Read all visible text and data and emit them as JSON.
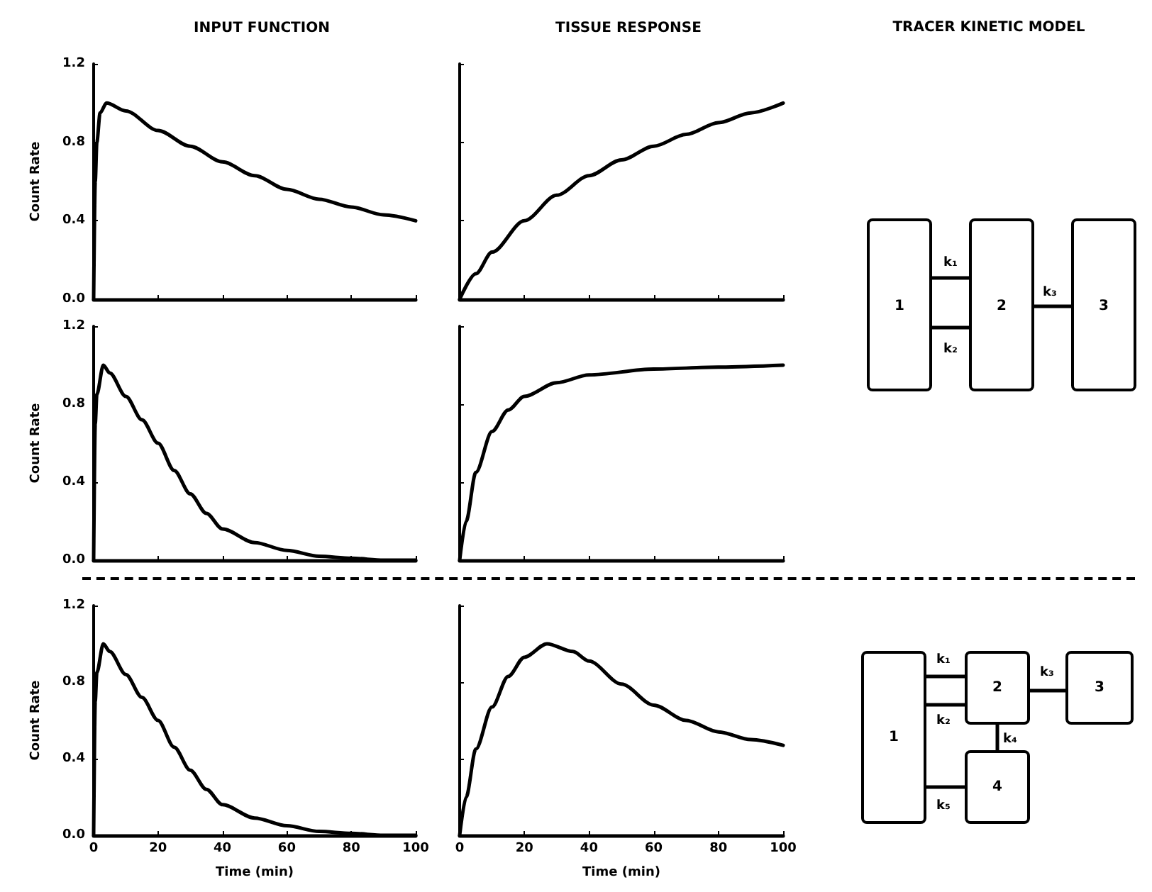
{
  "chart_data": [
    {
      "type": "line",
      "title": "INPUT FUNCTION",
      "ylabel": "Count Rate",
      "xlim": [
        0,
        100
      ],
      "xticks": [
        0,
        20,
        40,
        60,
        80,
        100
      ],
      "ylim": [
        0,
        1.2
      ],
      "yticks": [
        {
          "value": 0,
          "label": "0.0"
        },
        {
          "value": 0.4,
          "label": "0.4"
        },
        {
          "value": 0.8,
          "label": "0.8"
        },
        {
          "value": 1.2,
          "label": "1.2"
        }
      ],
      "tick_labels": "y",
      "series": [
        {
          "color": "#000000",
          "x": [
            0,
            0.5,
            1,
            2,
            4,
            10,
            20,
            30,
            40,
            50,
            60,
            70,
            80,
            90,
            100
          ],
          "values": [
            0,
            0.6,
            0.8,
            0.95,
            1.0,
            0.96,
            0.86,
            0.78,
            0.7,
            0.63,
            0.56,
            0.51,
            0.47,
            0.43,
            0.4
          ]
        }
      ]
    },
    {
      "type": "line",
      "title": "TISSUE RESPONSE",
      "xlim": [
        0,
        100
      ],
      "xticks": [
        0,
        20,
        40,
        60,
        80,
        100
      ],
      "ylim": [
        0,
        1.2
      ],
      "yticks": [
        0,
        0.4,
        0.8,
        1.2
      ],
      "tick_labels": false,
      "series": [
        {
          "color": "#000000",
          "x": [
            0,
            5,
            10,
            20,
            30,
            40,
            50,
            60,
            70,
            80,
            90,
            100
          ],
          "values": [
            0,
            0.13,
            0.24,
            0.4,
            0.53,
            0.63,
            0.71,
            0.78,
            0.84,
            0.9,
            0.95,
            1.0
          ]
        }
      ]
    },
    {
      "type": "other",
      "title": "TRACER KINETIC MODEL",
      "annotations": [
        "1",
        "2",
        "3",
        "k₁",
        "k₂",
        "k₃"
      ]
    },
    {
      "type": "line",
      "ylabel": "Count Rate",
      "xlim": [
        0,
        100
      ],
      "xticks": [
        0,
        20,
        40,
        60,
        80,
        100
      ],
      "ylim": [
        0,
        1.2
      ],
      "yticks": [
        {
          "value": 0,
          "label": "0.0"
        },
        {
          "value": 0.4,
          "label": "0.4"
        },
        {
          "value": 0.8,
          "label": "0.8"
        },
        {
          "value": 1.2,
          "label": "1.2"
        }
      ],
      "tick_labels": "y",
      "series": [
        {
          "color": "#000000",
          "x": [
            0,
            0.5,
            1,
            3,
            5,
            10,
            15,
            20,
            25,
            30,
            35,
            40,
            50,
            60,
            70,
            80,
            90,
            100
          ],
          "values": [
            0,
            0.7,
            0.85,
            1.0,
            0.96,
            0.84,
            0.72,
            0.6,
            0.46,
            0.34,
            0.24,
            0.16,
            0.09,
            0.05,
            0.02,
            0.01,
            0,
            0
          ]
        }
      ]
    },
    {
      "type": "line",
      "xlim": [
        0,
        100
      ],
      "xticks": [
        0,
        20,
        40,
        60,
        80,
        100
      ],
      "ylim": [
        0,
        1.2
      ],
      "yticks": [
        0,
        0.4,
        0.8,
        1.2
      ],
      "tick_labels": false,
      "series": [
        {
          "color": "#000000",
          "x": [
            0,
            2,
            5,
            10,
            15,
            20,
            30,
            40,
            60,
            80,
            100
          ],
          "values": [
            0,
            0.2,
            0.45,
            0.66,
            0.77,
            0.84,
            0.91,
            0.95,
            0.98,
            0.99,
            1.0
          ]
        }
      ]
    },
    {
      "type": "line",
      "xlabel": "Time (min)",
      "ylabel": "Count Rate",
      "xlim": [
        0,
        100
      ],
      "xticks": [
        0,
        20,
        40,
        60,
        80,
        100
      ],
      "ylim": [
        0,
        1.2
      ],
      "yticks": [
        {
          "value": 0,
          "label": "0.0"
        },
        {
          "value": 0.4,
          "label": "0.4"
        },
        {
          "value": 0.8,
          "label": "0.8"
        },
        {
          "value": 1.2,
          "label": "1.2"
        }
      ],
      "series": [
        {
          "color": "#000000",
          "x": [
            0,
            0.5,
            1,
            3,
            5,
            10,
            15,
            20,
            25,
            30,
            35,
            40,
            50,
            60,
            70,
            80,
            90,
            100
          ],
          "values": [
            0,
            0.7,
            0.85,
            1.0,
            0.96,
            0.84,
            0.72,
            0.6,
            0.46,
            0.34,
            0.24,
            0.16,
            0.09,
            0.05,
            0.02,
            0.01,
            0,
            0
          ]
        }
      ]
    },
    {
      "type": "line",
      "xlabel": "Time (min)",
      "xlim": [
        0,
        100
      ],
      "xticks": [
        0,
        20,
        40,
        60,
        80,
        100
      ],
      "ylim": [
        0,
        1.2
      ],
      "yticks": [
        0,
        0.4,
        0.8,
        1.2
      ],
      "tick_labels": "x",
      "series": [
        {
          "color": "#000000",
          "x": [
            0,
            2,
            5,
            10,
            15,
            20,
            27,
            35,
            40,
            50,
            60,
            70,
            80,
            90,
            100
          ],
          "values": [
            0,
            0.2,
            0.45,
            0.67,
            0.83,
            0.93,
            1.0,
            0.96,
            0.91,
            0.79,
            0.68,
            0.6,
            0.54,
            0.5,
            0.47
          ]
        }
      ]
    },
    {
      "type": "other",
      "annotations": [
        "1",
        "2",
        "3",
        "4",
        "k₁",
        "k₂",
        "k₃",
        "k₄",
        "k₅"
      ]
    }
  ]
}
